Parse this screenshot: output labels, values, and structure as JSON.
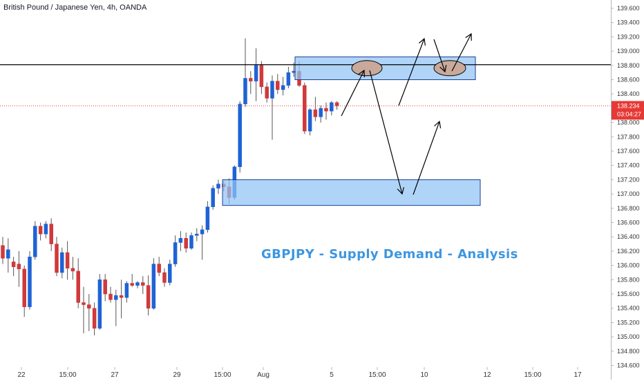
{
  "header": {
    "title": "British Pound / Japanese Yen, 4h, OANDA"
  },
  "annotation": {
    "text": "GBPJPY - Supply Demand - Analysis"
  },
  "current_price": {
    "price": "138.234",
    "countdown": "03:04:27",
    "color": "#e53935"
  },
  "colors": {
    "up": "#1e63d6",
    "down": "#d0393b",
    "zone_fill": "#90c3f5",
    "zone_stroke": "#1a3f8f",
    "ellipse_fill": "#c9a99a",
    "resistance_line": "#000000",
    "current_line": "#e53935",
    "annotation": "#3d96e0"
  },
  "chart_data": {
    "type": "candlestick",
    "title": "British Pound / Japanese Yen, 4h, OANDA",
    "ylim": [
      134.4,
      139.7
    ],
    "y_ticks": [
      "139.600",
      "139.400",
      "139.200",
      "139.000",
      "138.800",
      "138.600",
      "138.400",
      "138.200",
      "138.000",
      "137.800",
      "137.600",
      "137.400",
      "137.200",
      "137.000",
      "136.800",
      "136.600",
      "136.400",
      "136.200",
      "136.000",
      "135.800",
      "135.600",
      "135.400",
      "135.200",
      "135.000",
      "134.800",
      "134.600"
    ],
    "x_ticks": [
      "22",
      "15:00",
      "27",
      "29",
      "15:00",
      "Aug",
      "5",
      "15:00",
      "10",
      "12",
      "15:00",
      "17"
    ],
    "candles": [
      {
        "o": 136.28,
        "h": 136.4,
        "l": 136.02,
        "c": 136.1
      },
      {
        "o": 136.1,
        "h": 136.38,
        "l": 135.9,
        "c": 136.22
      },
      {
        "o": 136.05,
        "h": 136.12,
        "l": 135.85,
        "c": 135.98
      },
      {
        "o": 136.02,
        "h": 136.2,
        "l": 135.7,
        "c": 135.95
      },
      {
        "o": 135.95,
        "h": 136.0,
        "l": 135.28,
        "c": 135.42
      },
      {
        "o": 135.42,
        "h": 136.2,
        "l": 135.38,
        "c": 136.12
      },
      {
        "o": 136.12,
        "h": 136.62,
        "l": 136.08,
        "c": 136.55
      },
      {
        "o": 136.55,
        "h": 136.6,
        "l": 136.35,
        "c": 136.44
      },
      {
        "o": 136.44,
        "h": 136.62,
        "l": 136.38,
        "c": 136.58
      },
      {
        "o": 136.58,
        "h": 136.66,
        "l": 136.2,
        "c": 136.3
      },
      {
        "o": 136.3,
        "h": 136.4,
        "l": 135.85,
        "c": 135.9
      },
      {
        "o": 135.9,
        "h": 136.25,
        "l": 135.82,
        "c": 136.18
      },
      {
        "o": 136.18,
        "h": 136.34,
        "l": 135.8,
        "c": 135.96
      },
      {
        "o": 135.96,
        "h": 136.12,
        "l": 135.8,
        "c": 135.92
      },
      {
        "o": 135.92,
        "h": 136.1,
        "l": 135.4,
        "c": 135.48
      },
      {
        "o": 135.48,
        "h": 135.7,
        "l": 135.05,
        "c": 135.45
      },
      {
        "o": 135.45,
        "h": 135.6,
        "l": 135.08,
        "c": 135.4
      },
      {
        "o": 135.4,
        "h": 135.48,
        "l": 135.02,
        "c": 135.12
      },
      {
        "o": 135.12,
        "h": 135.88,
        "l": 135.1,
        "c": 135.8
      },
      {
        "o": 135.8,
        "h": 135.88,
        "l": 135.5,
        "c": 135.6
      },
      {
        "o": 135.6,
        "h": 135.7,
        "l": 135.48,
        "c": 135.52
      },
      {
        "o": 135.52,
        "h": 135.66,
        "l": 135.15,
        "c": 135.58
      },
      {
        "o": 135.58,
        "h": 135.8,
        "l": 135.26,
        "c": 135.55
      },
      {
        "o": 135.55,
        "h": 135.78,
        "l": 135.48,
        "c": 135.75
      },
      {
        "o": 135.75,
        "h": 135.88,
        "l": 135.7,
        "c": 135.72
      },
      {
        "o": 135.72,
        "h": 135.78,
        "l": 135.68,
        "c": 135.76
      },
      {
        "o": 135.76,
        "h": 135.85,
        "l": 135.6,
        "c": 135.72
      },
      {
        "o": 135.72,
        "h": 135.86,
        "l": 135.3,
        "c": 135.4
      },
      {
        "o": 135.4,
        "h": 136.1,
        "l": 135.38,
        "c": 136.02
      },
      {
        "o": 136.02,
        "h": 136.12,
        "l": 135.85,
        "c": 135.9
      },
      {
        "o": 135.9,
        "h": 135.96,
        "l": 135.7,
        "c": 135.76
      },
      {
        "o": 135.76,
        "h": 136.08,
        "l": 135.72,
        "c": 136.02
      },
      {
        "o": 136.02,
        "h": 136.42,
        "l": 135.98,
        "c": 136.32
      },
      {
        "o": 136.32,
        "h": 136.48,
        "l": 136.2,
        "c": 136.38
      },
      {
        "o": 136.38,
        "h": 136.46,
        "l": 136.18,
        "c": 136.24
      },
      {
        "o": 136.24,
        "h": 136.46,
        "l": 136.22,
        "c": 136.42
      },
      {
        "o": 136.42,
        "h": 136.52,
        "l": 136.34,
        "c": 136.44
      },
      {
        "o": 136.44,
        "h": 136.56,
        "l": 136.08,
        "c": 136.5
      },
      {
        "o": 136.5,
        "h": 136.9,
        "l": 136.46,
        "c": 136.82
      },
      {
        "o": 136.82,
        "h": 137.12,
        "l": 136.78,
        "c": 137.08
      },
      {
        "o": 137.08,
        "h": 137.2,
        "l": 137.0,
        "c": 137.14
      },
      {
        "o": 137.14,
        "h": 137.18,
        "l": 137.04,
        "c": 137.1
      },
      {
        "o": 137.1,
        "h": 137.22,
        "l": 136.86,
        "c": 136.95
      },
      {
        "o": 136.95,
        "h": 137.4,
        "l": 136.92,
        "c": 137.38
      },
      {
        "o": 137.38,
        "h": 138.3,
        "l": 137.3,
        "c": 138.26
      },
      {
        "o": 138.26,
        "h": 139.18,
        "l": 138.22,
        "c": 138.62
      },
      {
        "o": 138.62,
        "h": 138.72,
        "l": 138.4,
        "c": 138.58
      },
      {
        "o": 138.58,
        "h": 139.04,
        "l": 138.3,
        "c": 138.8
      },
      {
        "o": 138.8,
        "h": 138.86,
        "l": 138.4,
        "c": 138.5
      },
      {
        "o": 138.5,
        "h": 138.56,
        "l": 138.28,
        "c": 138.34
      },
      {
        "o": 138.34,
        "h": 138.66,
        "l": 137.76,
        "c": 138.58
      },
      {
        "o": 138.58,
        "h": 138.68,
        "l": 138.4,
        "c": 138.46
      },
      {
        "o": 138.46,
        "h": 138.64,
        "l": 138.38,
        "c": 138.52
      },
      {
        "o": 138.52,
        "h": 138.78,
        "l": 138.48,
        "c": 138.7
      },
      {
        "o": 138.7,
        "h": 138.84,
        "l": 138.64,
        "c": 138.72
      },
      {
        "o": 138.72,
        "h": 138.86,
        "l": 138.5,
        "c": 138.52
      },
      {
        "o": 138.52,
        "h": 138.56,
        "l": 137.84,
        "c": 137.88
      },
      {
        "o": 137.88,
        "h": 138.2,
        "l": 137.82,
        "c": 138.18
      },
      {
        "o": 138.18,
        "h": 138.36,
        "l": 138.02,
        "c": 138.08
      },
      {
        "o": 138.08,
        "h": 138.24,
        "l": 138.0,
        "c": 138.2
      },
      {
        "o": 138.2,
        "h": 138.28,
        "l": 138.04,
        "c": 138.16
      },
      {
        "o": 138.16,
        "h": 138.3,
        "l": 138.1,
        "c": 138.28
      },
      {
        "o": 138.28,
        "h": 138.3,
        "l": 138.18,
        "c": 138.234
      }
    ],
    "zones": [
      {
        "name": "supply",
        "y_low": 138.6,
        "y_high": 138.92
      },
      {
        "name": "demand",
        "y_low": 136.84,
        "y_high": 137.2
      }
    ],
    "resistance_line": 138.81,
    "current_price": 138.234
  }
}
